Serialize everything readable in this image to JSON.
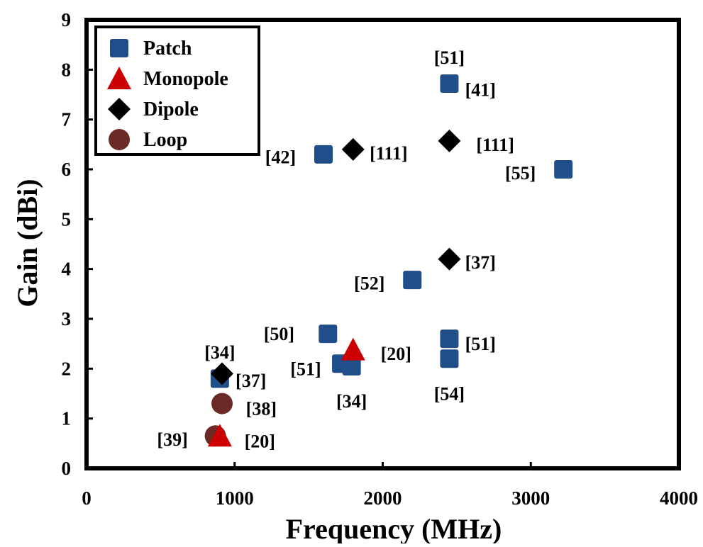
{
  "chart_data": {
    "type": "scatter",
    "title": "",
    "xlabel": "Frequency (MHz)",
    "ylabel": "Gain (dBi)",
    "xlim": [
      0,
      4000
    ],
    "ylim": [
      0,
      9
    ],
    "xticks": [
      0,
      1000,
      2000,
      3000,
      4000
    ],
    "yticks": [
      0,
      1,
      2,
      3,
      4,
      5,
      6,
      7,
      8,
      9
    ],
    "grid": false,
    "legend_position": "top-left",
    "series": [
      {
        "name": "Patch",
        "marker": "square",
        "color": "#1f4e89",
        "points": [
          {
            "x": 900,
            "y": 1.8
          },
          {
            "x": 1630,
            "y": 2.7
          },
          {
            "x": 1720,
            "y": 2.1
          },
          {
            "x": 1790,
            "y": 2.05
          },
          {
            "x": 1600,
            "y": 6.3
          },
          {
            "x": 2200,
            "y": 3.78
          },
          {
            "x": 2450,
            "y": 2.6
          },
          {
            "x": 2450,
            "y": 2.2
          },
          {
            "x": 2450,
            "y": 7.72
          },
          {
            "x": 3220,
            "y": 6.0
          }
        ]
      },
      {
        "name": "Monopole",
        "marker": "triangle",
        "color": "#cc0000",
        "points": [
          {
            "x": 1800,
            "y": 2.38
          },
          {
            "x": 900,
            "y": 0.65
          }
        ]
      },
      {
        "name": "Dipole",
        "marker": "diamond",
        "color": "#000000",
        "points": [
          {
            "x": 915,
            "y": 1.9
          },
          {
            "x": 1800,
            "y": 6.4
          },
          {
            "x": 2450,
            "y": 6.57
          },
          {
            "x": 2450,
            "y": 4.2
          }
        ]
      },
      {
        "name": "Loop",
        "marker": "circle",
        "color": "#6b2a26",
        "points": [
          {
            "x": 915,
            "y": 1.3
          },
          {
            "x": 870,
            "y": 0.65
          }
        ]
      }
    ],
    "annotations": [
      {
        "text": "[51]",
        "x": 2450,
        "y": 8.25
      },
      {
        "text": "[41]",
        "x": 2660,
        "y": 7.6
      },
      {
        "text": "[42]",
        "x": 1310,
        "y": 6.25
      },
      {
        "text": "[111]",
        "x": 2040,
        "y": 6.33
      },
      {
        "text": "[111]",
        "x": 2760,
        "y": 6.5
      },
      {
        "text": "[55]",
        "x": 2930,
        "y": 5.93
      },
      {
        "text": "[37]",
        "x": 2660,
        "y": 4.14
      },
      {
        "text": "[52]",
        "x": 1910,
        "y": 3.72
      },
      {
        "text": "[50]",
        "x": 1300,
        "y": 2.7
      },
      {
        "text": "[20]",
        "x": 2090,
        "y": 2.3
      },
      {
        "text": "[51]",
        "x": 2660,
        "y": 2.5
      },
      {
        "text": "[34]",
        "x": 900,
        "y": 2.33
      },
      {
        "text": "[51]",
        "x": 1480,
        "y": 2.0
      },
      {
        "text": "[37]",
        "x": 1110,
        "y": 1.76
      },
      {
        "text": "[54]",
        "x": 2450,
        "y": 1.5
      },
      {
        "text": "[34]",
        "x": 1790,
        "y": 1.35
      },
      {
        "text": "[38]",
        "x": 1180,
        "y": 1.2
      },
      {
        "text": "[39]",
        "x": 580,
        "y": 0.58
      },
      {
        "text": "[20]",
        "x": 1170,
        "y": 0.55
      }
    ]
  }
}
